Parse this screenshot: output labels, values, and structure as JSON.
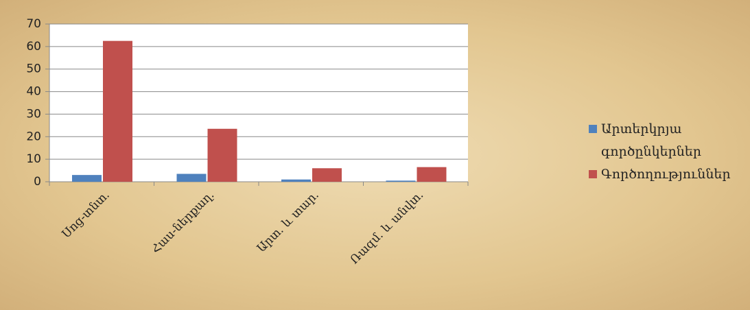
{
  "chart_data": {
    "type": "bar",
    "categories": [
      "Սոց-տնտ.",
      "Հաս-ներքաղ.",
      "Արտ. և տար.",
      "Ռազմ. և անվտ."
    ],
    "series": [
      {
        "name": "Արտերկրյա գործընկերներ",
        "color": "#4f81bd",
        "values": [
          3,
          3.5,
          1,
          0.5
        ]
      },
      {
        "name": "Գործողություններ",
        "color": "#c0504d",
        "values": [
          62.5,
          23.5,
          6,
          6.5
        ]
      }
    ],
    "ylim": [
      0,
      70
    ],
    "yticks": [
      0,
      10,
      20,
      30,
      40,
      50,
      60,
      70
    ],
    "grid": true,
    "legend": "right"
  }
}
